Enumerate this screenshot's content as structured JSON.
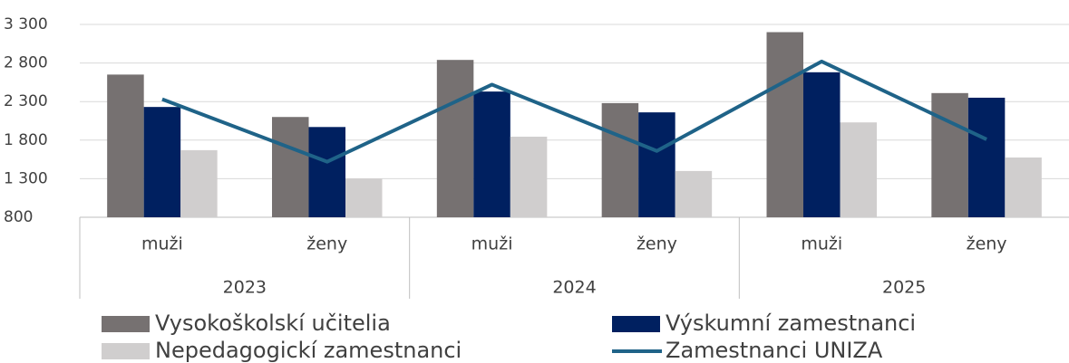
{
  "chart_data": {
    "type": "bar",
    "categories": [
      "muži",
      "ženy",
      "muži",
      "ženy",
      "muži",
      "ženy"
    ],
    "groups": [
      "2023",
      "2024",
      "2025"
    ],
    "series": [
      {
        "name": "Vysokoškolskí učitelia",
        "color": "#767171",
        "type": "bar",
        "values": [
          2650,
          2100,
          2840,
          2280,
          3200,
          2410
        ]
      },
      {
        "name": "Výskumní zamestnanci",
        "color": "#002060",
        "type": "bar",
        "values": [
          2230,
          1970,
          2430,
          2160,
          2680,
          2350
        ]
      },
      {
        "name": "Nepedagogickí zamestnanci",
        "color": "#d0cece",
        "type": "bar",
        "values": [
          1670,
          1300,
          1845,
          1400,
          2030,
          1575
        ]
      },
      {
        "name": "Zamestnanci UNIZA",
        "color": "#1f6388",
        "type": "line",
        "values": [
          2330,
          1520,
          2520,
          1660,
          2820,
          1810
        ]
      }
    ],
    "ylim": [
      800,
      3300
    ],
    "yticks": [
      {
        "value": 800,
        "label": "800"
      },
      {
        "value": 1300,
        "label": "1 300"
      },
      {
        "value": 1800,
        "label": "1 800"
      },
      {
        "value": 2300,
        "label": "2 300"
      },
      {
        "value": 2800,
        "label": "2 800"
      },
      {
        "value": 3300,
        "label": "3 300"
      }
    ],
    "grid": true
  }
}
